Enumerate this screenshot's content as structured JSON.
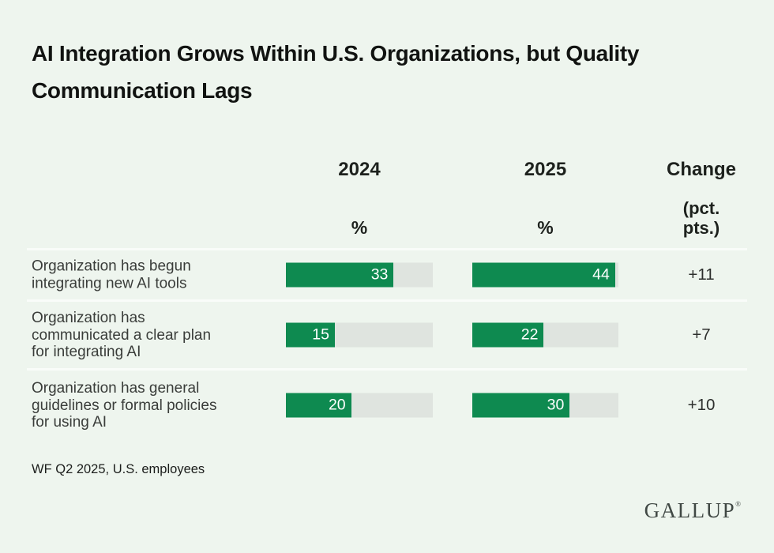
{
  "title": "AI Integration Grows Within U.S. Organizations, but Quality Communication Lags",
  "columns": {
    "year_2024": "2024",
    "year_2025": "2025",
    "change": "Change",
    "pct_2024": "%",
    "pct_2025": "%",
    "change_unit": "(pct. pts.)"
  },
  "chart_data": {
    "type": "bar",
    "title": "AI Integration Grows Within U.S. Organizations, but Quality Communication Lags",
    "categories": [
      "Organization has begun integrating new AI tools",
      "Organization has communicated a clear plan for integrating AI",
      "Organization has general guidelines or formal policies for using AI"
    ],
    "series": [
      {
        "name": "2024",
        "values": [
          33,
          15,
          20
        ]
      },
      {
        "name": "2025",
        "values": [
          44,
          22,
          30
        ]
      }
    ],
    "change_pct_pts": [
      "+11",
      "+7",
      "+10"
    ],
    "unit": "%",
    "xlim": [
      0,
      45
    ],
    "scale_max": 45,
    "orientation": "horizontal",
    "grid": false,
    "legend_position": "column-headers",
    "source": "WF Q2 2025, U.S. employees"
  },
  "footer": {
    "source": "WF Q2 2025, U.S. employees",
    "logo": "GALLUP",
    "logo_reg": "®"
  },
  "colors": {
    "background": "#eef5ee",
    "bar_green": "#0e8a50",
    "bar_track": "#dfe4df",
    "divider": "#f9fcf9",
    "title_text": "#111311",
    "label_text": "#3a3d3a",
    "value_text_on_bar": "#ffffff"
  }
}
